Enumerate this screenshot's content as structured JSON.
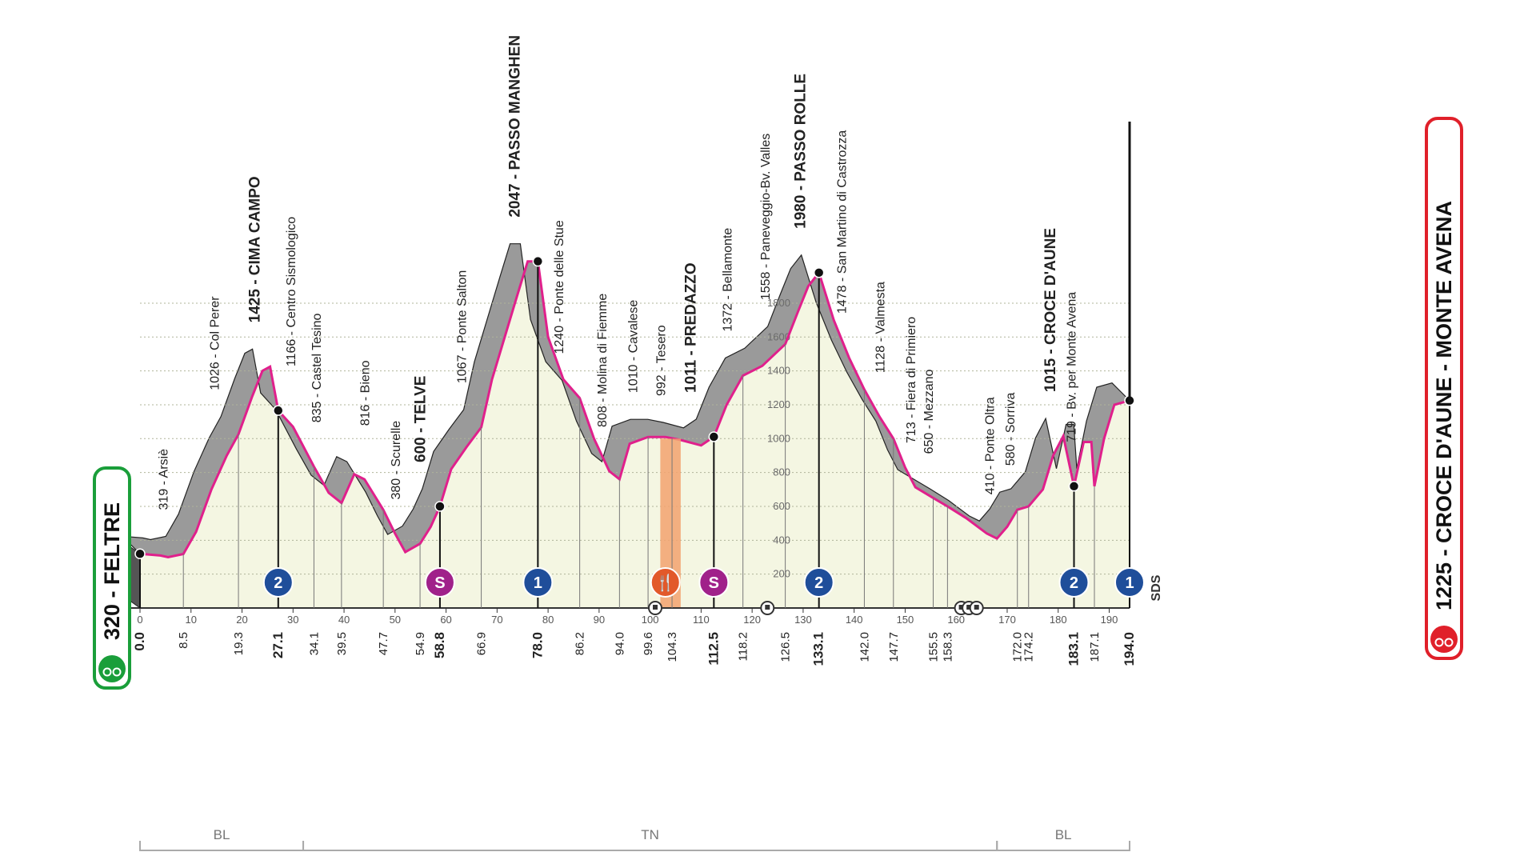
{
  "chart_data": {
    "type": "area",
    "start": {
      "label": "320 - FELTRE",
      "km": 0.0,
      "alt": 320
    },
    "finish": {
      "label": "1225 - CROCE D'AUNE - MONTE AVENA",
      "km": 194.0,
      "alt": 1225
    },
    "start_color": "#1a9e3a",
    "finish_color": "#e0202a",
    "profile_color": "#e0208c",
    "fill_color": "#f4f6e2",
    "climb_color": "#9a9a9a",
    "xlim": [
      0,
      194
    ],
    "ylim": [
      0,
      2200
    ],
    "profile": [
      [
        0,
        320
      ],
      [
        4,
        310
      ],
      [
        5.5,
        300
      ],
      [
        8.5,
        319
      ],
      [
        11,
        450
      ],
      [
        14,
        700
      ],
      [
        17,
        900
      ],
      [
        19.3,
        1026
      ],
      [
        22,
        1250
      ],
      [
        24,
        1400
      ],
      [
        25.5,
        1425
      ],
      [
        27.1,
        1166
      ],
      [
        30,
        1070
      ],
      [
        34.1,
        835
      ],
      [
        37,
        680
      ],
      [
        39.5,
        620
      ],
      [
        42,
        790
      ],
      [
        44,
        760
      ],
      [
        47.7,
        580
      ],
      [
        50,
        440
      ],
      [
        52,
        330
      ],
      [
        54.9,
        380
      ],
      [
        57,
        480
      ],
      [
        58.8,
        600
      ],
      [
        61,
        820
      ],
      [
        64,
        950
      ],
      [
        66.9,
        1067
      ],
      [
        69,
        1350
      ],
      [
        72,
        1650
      ],
      [
        74,
        1850
      ],
      [
        76,
        2047
      ],
      [
        78,
        2047
      ],
      [
        80,
        1600
      ],
      [
        83,
        1350
      ],
      [
        86.2,
        1240
      ],
      [
        89,
        1000
      ],
      [
        92,
        808
      ],
      [
        94,
        760
      ],
      [
        96,
        970
      ],
      [
        99.6,
        1010
      ],
      [
        103,
        1010
      ],
      [
        106,
        992
      ],
      [
        110,
        960
      ],
      [
        112.5,
        1011
      ],
      [
        115,
        1200
      ],
      [
        118.2,
        1372
      ],
      [
        122,
        1430
      ],
      [
        126.5,
        1558
      ],
      [
        129,
        1750
      ],
      [
        131,
        1900
      ],
      [
        133.1,
        1980
      ],
      [
        136,
        1700
      ],
      [
        139,
        1478
      ],
      [
        142,
        1290
      ],
      [
        145,
        1128
      ],
      [
        147.7,
        1000
      ],
      [
        150,
        830
      ],
      [
        152,
        713
      ],
      [
        155.5,
        650
      ],
      [
        158.3,
        600
      ],
      [
        162,
        530
      ],
      [
        166,
        440
      ],
      [
        168,
        410
      ],
      [
        170,
        480
      ],
      [
        172,
        580
      ],
      [
        174.2,
        600
      ],
      [
        177,
        700
      ],
      [
        179,
        900
      ],
      [
        181,
        1015
      ],
      [
        183.1,
        719
      ],
      [
        185,
        980
      ],
      [
        186.5,
        980
      ],
      [
        187.1,
        719
      ],
      [
        189,
        1000
      ],
      [
        191,
        1200
      ],
      [
        194,
        1225
      ]
    ],
    "x_ticks": [
      0,
      10,
      20,
      30,
      40,
      50,
      60,
      70,
      80,
      90,
      100,
      110,
      120,
      130,
      140,
      150,
      160,
      170,
      180,
      190
    ],
    "y_ticks": [
      200,
      400,
      600,
      800,
      1000,
      1200,
      1400,
      1600,
      1800
    ],
    "km_labels": [
      {
        "km": 0.0,
        "text": "0.0",
        "bold": true
      },
      {
        "km": 8.5,
        "text": "8.5"
      },
      {
        "km": 19.3,
        "text": "19.3"
      },
      {
        "km": 27.1,
        "text": "27.1",
        "bold": true
      },
      {
        "km": 34.1,
        "text": "34.1"
      },
      {
        "km": 39.5,
        "text": "39.5"
      },
      {
        "km": 47.7,
        "text": "47.7"
      },
      {
        "km": 54.9,
        "text": "54.9"
      },
      {
        "km": 58.8,
        "text": "58.8",
        "bold": true
      },
      {
        "km": 66.9,
        "text": "66.9"
      },
      {
        "km": 78.0,
        "text": "78.0",
        "bold": true
      },
      {
        "km": 86.2,
        "text": "86.2"
      },
      {
        "km": 94.0,
        "text": "94.0"
      },
      {
        "km": 99.6,
        "text": "99.6"
      },
      {
        "km": 104.3,
        "text": "104.3"
      },
      {
        "km": 112.5,
        "text": "112.5",
        "bold": true
      },
      {
        "km": 118.2,
        "text": "118.2"
      },
      {
        "km": 126.5,
        "text": "126.5"
      },
      {
        "km": 133.1,
        "text": "133.1",
        "bold": true
      },
      {
        "km": 142.0,
        "text": "142.0"
      },
      {
        "km": 147.7,
        "text": "147.7"
      },
      {
        "km": 155.5,
        "text": "155.5"
      },
      {
        "km": 158.3,
        "text": "158.3"
      },
      {
        "km": 172.0,
        "text": "172.0"
      },
      {
        "km": 174.2,
        "text": "174.2"
      },
      {
        "km": 183.1,
        "text": "183.1",
        "bold": true
      },
      {
        "km": 187.1,
        "text": "187.1"
      },
      {
        "km": 194.0,
        "text": "194.0",
        "bold": true
      }
    ],
    "places": [
      {
        "km": 4.5,
        "alt": 319,
        "text": "319 - Arsiè"
      },
      {
        "km": 14.5,
        "alt": 1026,
        "text": "1026 - Col Perer"
      },
      {
        "km": 22.5,
        "alt": 1425,
        "text": "1425 - CIMA CAMPO",
        "bold": true
      },
      {
        "km": 29.5,
        "alt": 1166,
        "text": "1166 - Centro Sismologico"
      },
      {
        "km": 34.5,
        "alt": 835,
        "text": "835 - Castel Tesino"
      },
      {
        "km": 44,
        "alt": 816,
        "text": "816 - Bieno"
      },
      {
        "km": 50,
        "alt": 380,
        "text": "380 - Scurelle"
      },
      {
        "km": 55,
        "alt": 600,
        "text": "600 - TELVE",
        "bold": true
      },
      {
        "km": 63,
        "alt": 1067,
        "text": "1067 - Ponte Salton"
      },
      {
        "km": 73.5,
        "alt": 2047,
        "text": "2047 - PASSO MANGHEN",
        "bold": true
      },
      {
        "km": 82,
        "alt": 1240,
        "text": "1240 - Ponte delle Stue"
      },
      {
        "km": 90.5,
        "alt": 808,
        "text": "808 - Molina di Fiemme"
      },
      {
        "km": 96.5,
        "alt": 1010,
        "text": "1010 - Cavalese"
      },
      {
        "km": 102,
        "alt": 992,
        "text": "992 - Tesero"
      },
      {
        "km": 108,
        "alt": 1011,
        "text": "1011 - PREDAZZO",
        "bold": true
      },
      {
        "km": 115,
        "alt": 1372,
        "text": "1372 - Bellamonte"
      },
      {
        "km": 122.5,
        "alt": 1558,
        "text": "1558 - Paneveggio-Bv. Valles"
      },
      {
        "km": 129.5,
        "alt": 1980,
        "text": "1980 - PASSO ROLLE",
        "bold": true
      },
      {
        "km": 137.5,
        "alt": 1478,
        "text": "1478 - San Martino di Castrozza"
      },
      {
        "km": 145,
        "alt": 1128,
        "text": "1128 - Valmesta"
      },
      {
        "km": 151,
        "alt": 713,
        "text": "713 - Fiera di Primiero"
      },
      {
        "km": 154.5,
        "alt": 650,
        "text": "650 - Mezzano"
      },
      {
        "km": 166.5,
        "alt": 410,
        "text": "410 - Ponte Oltra"
      },
      {
        "km": 170.5,
        "alt": 580,
        "text": "580 - Sorriva"
      },
      {
        "km": 178.5,
        "alt": 1015,
        "text": "1015 - CROCE D'AUNE",
        "bold": true
      },
      {
        "km": 182.5,
        "alt": 719,
        "text": "719 - Bv. per Monte Avena"
      }
    ],
    "climb_icons": [
      {
        "km": 27.1,
        "text": "2",
        "type": "gpm"
      },
      {
        "km": 58.8,
        "text": "S",
        "type": "sprint"
      },
      {
        "km": 78.0,
        "text": "1",
        "type": "gpm"
      },
      {
        "km": 103.0,
        "text": "🍴",
        "type": "feed"
      },
      {
        "km": 112.5,
        "text": "S",
        "type": "sprint"
      },
      {
        "km": 133.1,
        "text": "2",
        "type": "gpm"
      },
      {
        "km": 183.1,
        "text": "2",
        "type": "gpm"
      },
      {
        "km": 194.0,
        "text": "1",
        "type": "gpm"
      }
    ],
    "tunnels_km": [
      101,
      123,
      161,
      162.5,
      164
    ],
    "feed_zone": [
      102,
      106
    ],
    "regions": [
      {
        "text": "BL",
        "from": 0,
        "to": 32
      },
      {
        "text": "TN",
        "from": 32,
        "to": 168
      },
      {
        "text": "BL",
        "from": 168,
        "to": 194
      }
    ],
    "sds_label": "SDS"
  }
}
